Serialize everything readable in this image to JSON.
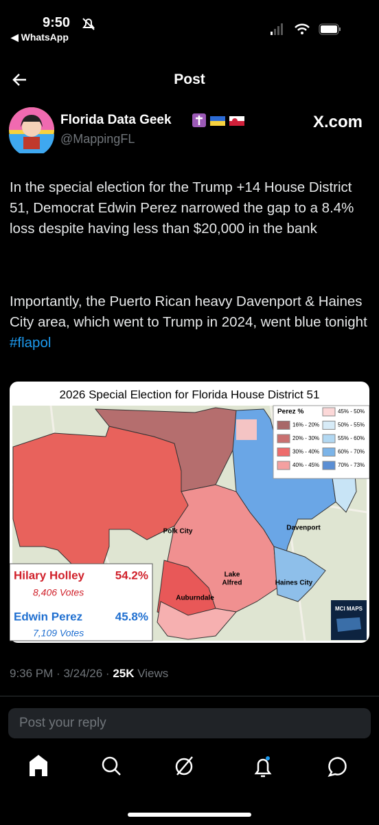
{
  "status_bar": {
    "time": "9:50",
    "back_app": "WhatsApp"
  },
  "header": {
    "title": "Post"
  },
  "post": {
    "author": {
      "name": "Florida Data Geek",
      "handle": "@MappingFL"
    },
    "source": "X.com",
    "paragraphs": [
      "In the special election for the Trump +14 House District 51, Democrat Edwin Perez narrowed the gap to a 8.4% loss despite having less than $20,000 in the bank",
      "Importantly, the Puerto Rican heavy Davenport & Haines City area, which went to Trump in 2024, went blue tonight"
    ],
    "hashtag": "#flapol",
    "image": {
      "title": "2026 Special Election for Florida House District 51",
      "legend": {
        "title": "Perez  %",
        "items": [
          "16% - 20%",
          "20% - 30%",
          "30% - 40%",
          "40% - 45%",
          "45% - 50%",
          "50% - 55%",
          "55% - 60%",
          "60% - 70%",
          "70% - 73%"
        ]
      },
      "places": [
        "Polk City",
        "Davenport",
        "Haines City",
        "Auburndale"
      ],
      "lake_alfred": [
        "Lake",
        "Alfred"
      ],
      "results": [
        {
          "name": "Hilary Holley",
          "pct": "54.2%",
          "votes": "8,406  Votes"
        },
        {
          "name": "Edwin Perez",
          "pct": "45.8%",
          "votes": "7,109  Votes"
        }
      ],
      "logo": "MCI MAPS"
    },
    "meta": {
      "time": "9:36 PM",
      "separator": "·",
      "date": "3/24/26",
      "views": "25K",
      "views_label": "Views"
    }
  },
  "reply": {
    "placeholder": "Post your reply"
  }
}
